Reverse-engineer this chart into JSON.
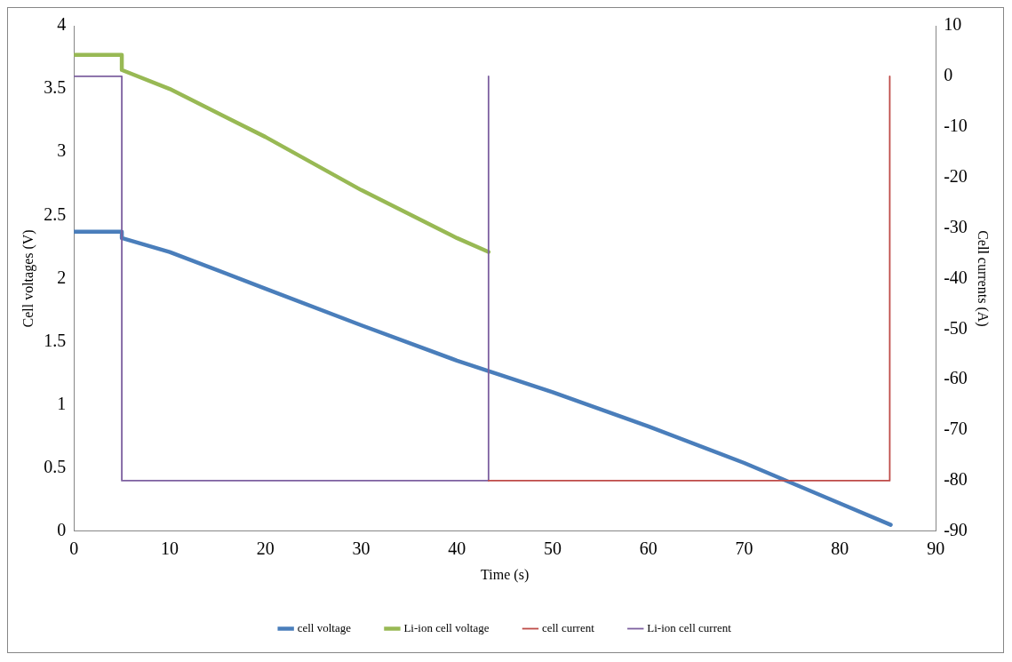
{
  "chart_data": {
    "type": "line",
    "xlabel": "Time (s)",
    "ylabel": "Cell voltages (V)",
    "y2label": "Cell currents (A)",
    "xlim": [
      0,
      90
    ],
    "xticks": [
      0,
      10,
      20,
      30,
      40,
      50,
      60,
      70,
      80,
      90
    ],
    "ylim": [
      0,
      4
    ],
    "yticks": [
      0,
      0.5,
      1,
      1.5,
      2,
      2.5,
      3,
      3.5,
      4
    ],
    "y2lim": [
      -90,
      10
    ],
    "y2ticks": [
      -90,
      -80,
      -70,
      -60,
      -50,
      -40,
      -30,
      -20,
      -10,
      0,
      10
    ],
    "grid": false,
    "legend": "bottom",
    "marker": "none",
    "series": [
      {
        "name": "cell voltage",
        "color": "#4a7ebb",
        "x": [
          0,
          5,
          5,
          10,
          20,
          30,
          40,
          50,
          60,
          70,
          75,
          80,
          85.3
        ],
        "values": [
          2.37,
          2.37,
          2.32,
          2.21,
          1.92,
          1.63,
          1.35,
          1.1,
          0.83,
          0.54,
          0.38,
          0.22,
          0.05
        ]
      },
      {
        "name": "Li-ion cell voltage",
        "color": "#98b954",
        "x": [
          0,
          5,
          5,
          10,
          20,
          30,
          40,
          43.3
        ],
        "values": [
          3.77,
          3.77,
          3.65,
          3.5,
          3.12,
          2.7,
          2.32,
          2.21
        ]
      },
      {
        "name": "cell current",
        "color": "#be4b48",
        "axis": "y2",
        "x": [
          43.3,
          85.2,
          85.2
        ],
        "values": [
          -80,
          -80,
          0
        ]
      },
      {
        "name": "Li-ion cell current",
        "color": "#7d60a0",
        "axis": "y2",
        "x": [
          0,
          5,
          5,
          43.3,
          43.3
        ],
        "values": [
          0,
          0,
          -80,
          -80,
          0
        ]
      }
    ]
  }
}
